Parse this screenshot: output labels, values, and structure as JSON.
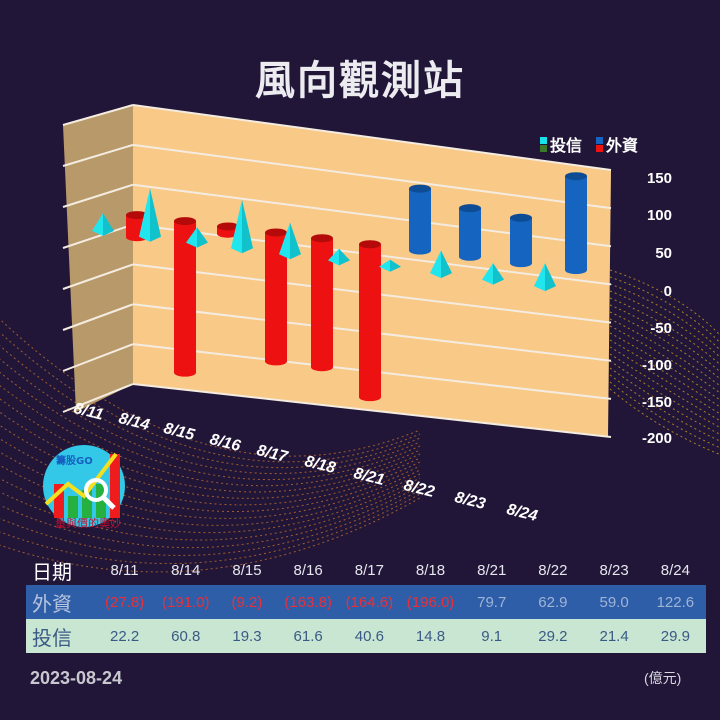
{
  "title": "風向觀測站",
  "legend": [
    {
      "label": "投信",
      "colors": [
        "#19e3ea",
        "#3a7a2a"
      ]
    },
    {
      "label": "外資",
      "colors": [
        "#1565c0",
        "#ee1111"
      ]
    }
  ],
  "y_ticks": [
    "150",
    "100",
    "50",
    "0",
    "-50",
    "-100",
    "-150",
    "-200"
  ],
  "x_labels": [
    "8/11",
    "8/14",
    "8/15",
    "8/16",
    "8/17",
    "8/18",
    "8/21",
    "8/22",
    "8/23",
    "8/24"
  ],
  "logo": {
    "brand": "籌股GO",
    "subtitle": "量與價的奧妙"
  },
  "table": {
    "date_header": "日期",
    "foreign_header": "外資",
    "trust_header": "投信",
    "dates": [
      "8/11",
      "8/14",
      "8/15",
      "8/16",
      "8/17",
      "8/18",
      "8/21",
      "8/22",
      "8/23",
      "8/24"
    ],
    "foreign": [
      "(27.8)",
      "(191.0)",
      "(9.2)",
      "(163.8)",
      "(164.6)",
      "(196.0)",
      "79.7",
      "62.9",
      "59.0",
      "122.6"
    ],
    "trust": [
      "22.2",
      "60.8",
      "19.3",
      "61.6",
      "40.6",
      "14.8",
      "9.1",
      "29.2",
      "21.4",
      "29.9"
    ]
  },
  "footer": {
    "date": "2023-08-24",
    "unit": "(億元)"
  },
  "colors": {
    "background": "#221638",
    "wall": "#f8c987",
    "side_wall": "#b8996a",
    "foreign_positive": "#1565c0",
    "foreign_negative": "#ee1111",
    "trust": "#19e3ea",
    "table_foreign_bg": "#2f5ea8",
    "table_trust_bg": "#c8e6d2"
  },
  "chart_data": {
    "type": "bar",
    "title": "風向觀測站",
    "categories": [
      "8/11",
      "8/14",
      "8/15",
      "8/16",
      "8/17",
      "8/18",
      "8/21",
      "8/22",
      "8/23",
      "8/24"
    ],
    "series": [
      {
        "name": "投信",
        "shape": "pyramid",
        "values": [
          22.2,
          60.8,
          19.3,
          61.6,
          40.6,
          14.8,
          9.1,
          29.2,
          21.4,
          29.9
        ]
      },
      {
        "name": "外資",
        "shape": "cylinder",
        "values": [
          -27.8,
          -191.0,
          -9.2,
          -163.8,
          -164.6,
          -196.0,
          79.7,
          62.9,
          59.0,
          122.6
        ]
      }
    ],
    "xlabel": "",
    "ylabel": "",
    "unit": "億元",
    "ylim": [
      -200,
      150
    ],
    "y_ticks": [
      150,
      100,
      50,
      0,
      -50,
      -100,
      -150,
      -200
    ],
    "grid": true,
    "legend_position": "top-right",
    "3d": true
  }
}
